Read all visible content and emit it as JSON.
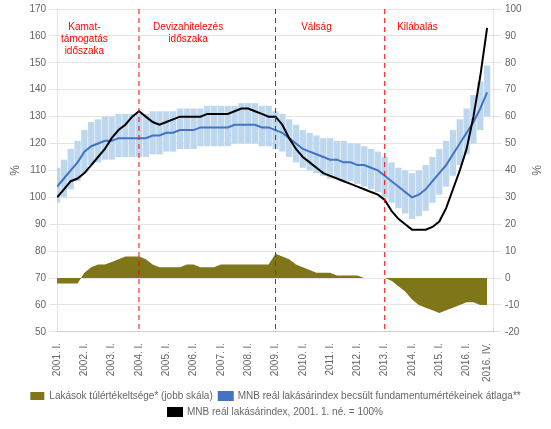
{
  "chart_data": {
    "type": "line",
    "x": [
      2001.0,
      2001.25,
      2001.5,
      2001.75,
      2002.0,
      2002.25,
      2002.5,
      2002.75,
      2003.0,
      2003.25,
      2003.5,
      2003.75,
      2004.0,
      2004.25,
      2004.5,
      2004.75,
      2005.0,
      2005.25,
      2005.5,
      2005.75,
      2006.0,
      2006.25,
      2006.5,
      2006.75,
      2007.0,
      2007.25,
      2007.5,
      2007.75,
      2008.0,
      2008.25,
      2008.5,
      2008.75,
      2009.0,
      2009.25,
      2009.5,
      2009.75,
      2010.0,
      2010.25,
      2010.5,
      2010.75,
      2011.0,
      2011.25,
      2011.5,
      2011.75,
      2012.0,
      2012.25,
      2012.5,
      2012.75,
      2013.0,
      2013.25,
      2013.5,
      2013.75,
      2014.0,
      2014.25,
      2014.5,
      2014.75,
      2015.0,
      2015.25,
      2015.5,
      2015.75,
      2016.0,
      2016.25,
      2016.5,
      2016.75
    ],
    "xlim": [
      2001.0,
      2017.0
    ],
    "xticks": [
      {
        "value": 2001.0,
        "label": "2001. I."
      },
      {
        "value": 2002.0,
        "label": "2002. I."
      },
      {
        "value": 2003.0,
        "label": "2003. I."
      },
      {
        "value": 2004.0,
        "label": "2004. I."
      },
      {
        "value": 2005.0,
        "label": "2005. I."
      },
      {
        "value": 2006.0,
        "label": "2006. I."
      },
      {
        "value": 2007.0,
        "label": "2007. I."
      },
      {
        "value": 2008.0,
        "label": "2008. I."
      },
      {
        "value": 2009.0,
        "label": "2009. I."
      },
      {
        "value": 2010.0,
        "label": "2010. I."
      },
      {
        "value": 2011.0,
        "label": "2011. I."
      },
      {
        "value": 2012.0,
        "label": "2012. I."
      },
      {
        "value": 2013.0,
        "label": "2013. I."
      },
      {
        "value": 2014.0,
        "label": "2014. I."
      },
      {
        "value": 2015.0,
        "label": "2015. I."
      },
      {
        "value": 2016.0,
        "label": "2016. I."
      },
      {
        "value": 2016.75,
        "label": "2016. IV."
      }
    ],
    "ylim": [
      50,
      170
    ],
    "yticks": [
      50,
      60,
      70,
      80,
      90,
      100,
      110,
      120,
      130,
      140,
      150,
      160,
      170
    ],
    "y2lim": [
      -20,
      100
    ],
    "y2ticks": [
      -20,
      -10,
      0,
      10,
      20,
      30,
      40,
      50,
      60,
      70,
      80,
      90,
      100
    ],
    "ylabel": "%",
    "y2label": "%",
    "grid": "y",
    "legend": "bottom",
    "series": [
      {
        "type": "bar",
        "color": "#BDD7EE",
        "lower": [
          98,
          100,
          103,
          106,
          109,
          112,
          113,
          114,
          114,
          115,
          115,
          115,
          115,
          115,
          116,
          116,
          117,
          117,
          118,
          118,
          118,
          119,
          119,
          119,
          119,
          119,
          120,
          120,
          120,
          120,
          119,
          119,
          118,
          117,
          115,
          113,
          111,
          110,
          109,
          108,
          107,
          107,
          106,
          106,
          105,
          104,
          103,
          102,
          100,
          98,
          96,
          94,
          92,
          93,
          95,
          98,
          101,
          104,
          108,
          112,
          116,
          120,
          125,
          130
        ],
        "upper": [
          111,
          114,
          118,
          121,
          125,
          128,
          129,
          130,
          130,
          131,
          131,
          131,
          131,
          131,
          132,
          132,
          132,
          132,
          133,
          133,
          133,
          133,
          134,
          134,
          134,
          134,
          134,
          135,
          135,
          135,
          134,
          134,
          132,
          131,
          129,
          127,
          125,
          124,
          123,
          122,
          122,
          121,
          121,
          120,
          120,
          119,
          118,
          117,
          115,
          113,
          111,
          110,
          109,
          110,
          112,
          115,
          118,
          121,
          125,
          129,
          133,
          138,
          143,
          149
        ]
      },
      {
        "name": "Lakások túlértékeltsége* (jobb skála)",
        "type": "area",
        "axis": "y2",
        "color": "#7F7519",
        "values": [
          -2,
          -2,
          -2,
          -2,
          2,
          4,
          5,
          5,
          6,
          7,
          8,
          8,
          8,
          7,
          5,
          4,
          4,
          4,
          4,
          5,
          5,
          4,
          4,
          4,
          5,
          5,
          5,
          5,
          5,
          5,
          5,
          5,
          9,
          8,
          7,
          5,
          4,
          3,
          2,
          2,
          2,
          1,
          1,
          1,
          1,
          0,
          0,
          0,
          0,
          -1,
          -3,
          -5,
          -8,
          -10,
          -11,
          -12,
          -13,
          -12,
          -11,
          -10,
          -9,
          -9,
          -10,
          -10
        ]
      },
      {
        "name": "MNB reál lakásárindex becsült fundamentumértékeinek átlaga**",
        "type": "line",
        "color": "#4472C4",
        "values": [
          104,
          107,
          110,
          113,
          117,
          119,
          120,
          121,
          121,
          122,
          122,
          122,
          122,
          122,
          123,
          123,
          124,
          124,
          125,
          125,
          125,
          126,
          126,
          126,
          126,
          126,
          127,
          127,
          127,
          127,
          126,
          126,
          125,
          124,
          122,
          120,
          118,
          117,
          116,
          115,
          114,
          114,
          113,
          113,
          112,
          112,
          111,
          110,
          108,
          106,
          104,
          102,
          100,
          101,
          103,
          106,
          109,
          112,
          116,
          120,
          124,
          128,
          133,
          139
        ]
      },
      {
        "name": "MNB reál lakásárindex, 2001. 1. né. = 100%",
        "type": "line",
        "color": "#000000",
        "values": [
          100,
          103,
          106,
          107,
          109,
          112,
          115,
          118,
          122,
          125,
          127,
          130,
          132,
          130,
          128,
          127,
          128,
          129,
          130,
          130,
          130,
          130,
          131,
          131,
          131,
          131,
          132,
          133,
          133,
          132,
          131,
          130,
          130,
          127,
          122,
          118,
          115,
          113,
          111,
          109,
          108,
          107,
          106,
          105,
          104,
          103,
          102,
          101,
          99,
          95,
          92,
          90,
          88,
          88,
          88,
          89,
          91,
          96,
          103,
          110,
          118,
          130,
          145,
          163
        ]
      }
    ],
    "vlines": {
      "x": [
        2004.0,
        2009.0,
        2013.0
      ],
      "color": "#FF0000",
      "line_style": "dashed"
    },
    "annotations": [
      {
        "text": "Kamat-\ntámogatás\nidőszaka",
        "x": 2002.0,
        "y": 165,
        "color": "#FF0000"
      },
      {
        "text": "Devizahitelezés\nidőszaka",
        "x": 2005.8,
        "y": 165,
        "color": "#FF0000"
      },
      {
        "text": "Válság",
        "x": 2010.5,
        "y": 165,
        "color": "#FF0000"
      },
      {
        "text": "Kilábalás",
        "x": 2014.2,
        "y": 165,
        "color": "#FF0000"
      }
    ]
  }
}
